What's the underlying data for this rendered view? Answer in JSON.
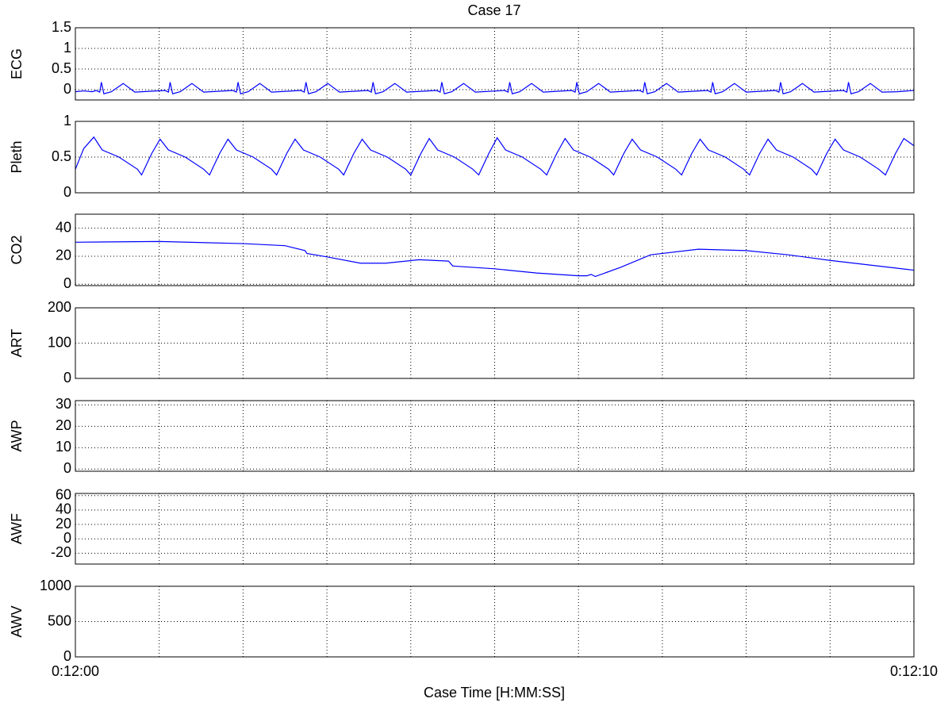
{
  "chart_data": [
    {
      "type": "line",
      "title": "Case 17",
      "ylabel": "ECG",
      "color": "#0000ff",
      "ylim": [
        -0.25,
        1.5
      ],
      "yticks": [
        0,
        0.5,
        1,
        1.5
      ],
      "x": [
        720,
        720.1,
        720.2,
        720.25,
        720.29,
        720.31,
        720.34,
        720.43,
        720.57,
        720.71,
        721.07,
        721.11,
        721.13,
        721.16,
        721.25,
        721.39,
        721.53,
        721.88,
        721.92,
        721.94,
        721.97,
        722.06,
        722.2,
        722.34,
        722.69,
        722.73,
        722.75,
        722.78,
        722.87,
        723.01,
        723.15,
        723.49,
        723.53,
        723.55,
        723.58,
        723.67,
        723.81,
        723.95,
        724.31,
        724.35,
        724.37,
        724.4,
        724.49,
        724.63,
        724.77,
        725.12,
        725.16,
        725.18,
        725.21,
        725.3,
        725.44,
        725.58,
        725.92,
        725.96,
        725.98,
        726.01,
        726.1,
        726.24,
        726.38,
        726.73,
        726.77,
        726.79,
        726.82,
        726.91,
        727.05,
        727.19,
        727.54,
        727.58,
        727.6,
        727.63,
        727.72,
        727.86,
        728,
        728.35,
        728.39,
        728.41,
        728.44,
        728.53,
        728.67,
        728.81,
        729.16,
        729.2,
        729.22,
        729.25,
        729.34,
        729.48,
        729.62,
        729.8,
        730
      ],
      "values": [
        -0.05,
        -0.03,
        -0.05,
        -0.02,
        -0.06,
        0.18,
        -0.1,
        -0.05,
        0.15,
        -0.06,
        -0.02,
        -0.06,
        0.18,
        -0.1,
        -0.05,
        0.15,
        -0.06,
        -0.02,
        -0.06,
        0.18,
        -0.1,
        -0.05,
        0.15,
        -0.06,
        -0.02,
        -0.06,
        0.18,
        -0.1,
        -0.05,
        0.15,
        -0.06,
        -0.02,
        -0.06,
        0.18,
        -0.1,
        -0.05,
        0.15,
        -0.06,
        -0.02,
        -0.06,
        0.18,
        -0.1,
        -0.05,
        0.15,
        -0.06,
        -0.02,
        -0.06,
        0.18,
        -0.1,
        -0.05,
        0.15,
        -0.06,
        -0.02,
        -0.06,
        0.18,
        -0.1,
        -0.05,
        0.15,
        -0.06,
        -0.02,
        -0.06,
        0.18,
        -0.1,
        -0.05,
        0.15,
        -0.06,
        -0.02,
        -0.06,
        0.18,
        -0.1,
        -0.05,
        0.15,
        -0.06,
        -0.02,
        -0.06,
        0.18,
        -0.1,
        -0.05,
        0.15,
        -0.06,
        -0.02,
        -0.06,
        0.18,
        -0.1,
        -0.05,
        0.15,
        -0.06,
        -0.05,
        -0.02
      ]
    },
    {
      "type": "line",
      "ylabel": "Pleth",
      "color": "#0000ff",
      "ylim": [
        0,
        1
      ],
      "yticks": [
        0,
        0.5,
        1
      ],
      "x": [
        720,
        720.1,
        720.22,
        720.32,
        720.52,
        720.74,
        720.79,
        720.91,
        721.01,
        721.11,
        721.31,
        721.53,
        721.6,
        721.72,
        721.82,
        721.92,
        722.12,
        722.34,
        722.4,
        722.52,
        722.62,
        722.72,
        722.92,
        723.14,
        723.2,
        723.32,
        723.42,
        723.52,
        723.72,
        723.94,
        724,
        724.12,
        724.22,
        724.32,
        724.52,
        724.74,
        724.81,
        724.93,
        725.03,
        725.13,
        725.33,
        725.55,
        725.62,
        725.74,
        725.84,
        725.94,
        726.14,
        726.36,
        726.42,
        726.54,
        726.64,
        726.74,
        726.94,
        727.16,
        727.23,
        727.35,
        727.45,
        727.55,
        727.75,
        727.97,
        728.04,
        728.16,
        728.26,
        728.36,
        728.56,
        728.78,
        728.84,
        728.96,
        729.06,
        729.16,
        729.36,
        729.58,
        729.66,
        729.78,
        729.88,
        730
      ],
      "values": [
        0.33,
        0.62,
        0.78,
        0.6,
        0.5,
        0.33,
        0.25,
        0.55,
        0.75,
        0.6,
        0.5,
        0.33,
        0.25,
        0.55,
        0.75,
        0.6,
        0.5,
        0.33,
        0.25,
        0.55,
        0.75,
        0.6,
        0.5,
        0.33,
        0.25,
        0.55,
        0.75,
        0.6,
        0.5,
        0.33,
        0.25,
        0.55,
        0.76,
        0.6,
        0.5,
        0.33,
        0.25,
        0.55,
        0.77,
        0.6,
        0.5,
        0.33,
        0.25,
        0.55,
        0.76,
        0.6,
        0.5,
        0.33,
        0.25,
        0.55,
        0.75,
        0.6,
        0.5,
        0.33,
        0.25,
        0.55,
        0.75,
        0.6,
        0.5,
        0.33,
        0.25,
        0.55,
        0.75,
        0.6,
        0.5,
        0.33,
        0.25,
        0.55,
        0.75,
        0.6,
        0.5,
        0.33,
        0.25,
        0.55,
        0.76,
        0.66
      ]
    },
    {
      "type": "line",
      "ylabel": "CO2",
      "color": "#0000ff",
      "ylim": [
        -1,
        50
      ],
      "yticks": [
        0,
        20,
        40
      ],
      "x": [
        720,
        721,
        722,
        722.5,
        722.74,
        722.76,
        723,
        723.4,
        723.7,
        724.1,
        724.45,
        724.5,
        725,
        725.5,
        726,
        726.1,
        726.15,
        726.2,
        726.5,
        726.86,
        727.43,
        728,
        728.5,
        729,
        730
      ],
      "values": [
        30,
        30.5,
        29,
        27.5,
        24,
        22,
        19.5,
        15,
        15,
        17.5,
        16.5,
        13,
        11,
        8,
        6,
        6,
        7,
        5.5,
        12,
        21,
        25,
        24,
        21,
        17,
        10
      ]
    },
    {
      "type": "line",
      "ylabel": "ART",
      "ylim": [
        0,
        200
      ],
      "yticks": [
        0,
        100,
        200
      ]
    },
    {
      "type": "line",
      "ylabel": "AWP",
      "ylim": [
        -1,
        32
      ],
      "yticks": [
        0,
        10,
        20,
        30
      ]
    },
    {
      "type": "line",
      "ylabel": "AWF",
      "ylim": [
        -35,
        63
      ],
      "yticks": [
        -20,
        0,
        20,
        40,
        60
      ]
    },
    {
      "type": "line",
      "ylabel": "AWV",
      "ylim": [
        0,
        1000
      ],
      "yticks": [
        0,
        500,
        1000
      ],
      "xlabel": "Case Time [H:MM:SS]",
      "xlim": [
        720,
        730
      ],
      "xticks": [
        {
          "value": 720,
          "label": "0:12:00"
        },
        {
          "value": 721,
          "label": null
        },
        {
          "value": 722,
          "label": null
        },
        {
          "value": 723,
          "label": null
        },
        {
          "value": 724,
          "label": null
        },
        {
          "value": 725,
          "label": null
        },
        {
          "value": 726,
          "label": null
        },
        {
          "value": 727,
          "label": null
        },
        {
          "value": 728,
          "label": null
        },
        {
          "value": 729,
          "label": null
        },
        {
          "value": 730,
          "label": "0:12:10"
        }
      ]
    }
  ]
}
